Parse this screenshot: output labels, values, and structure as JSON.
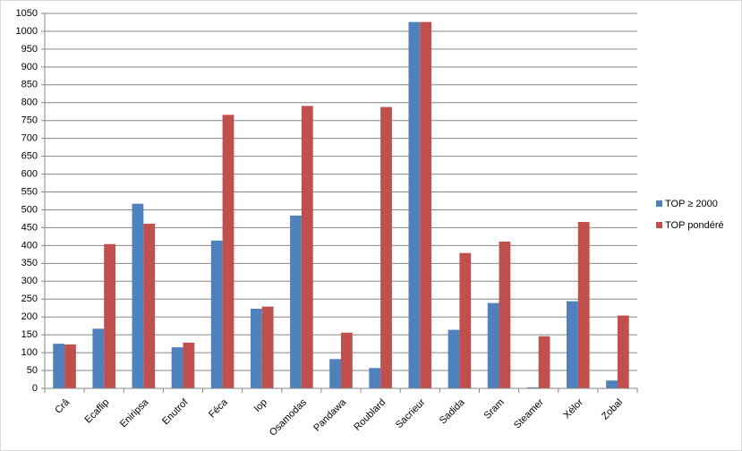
{
  "chart_data": {
    "type": "bar",
    "categories": [
      "Crâ",
      "Ecaflip",
      "Eniripsa",
      "Enutrof",
      "Féca",
      "Iop",
      "Osamodas",
      "Pandawa",
      "Roublard",
      "Sacrieur",
      "Sadida",
      "Sram",
      "Steamer",
      "Xélor",
      "Zobal"
    ],
    "series": [
      {
        "name": "TOP ≥ 2000",
        "color": "#4f81bd",
        "values": [
          125,
          167,
          517,
          115,
          414,
          223,
          484,
          82,
          57,
          1026,
          164,
          239,
          3,
          244,
          22
        ]
      },
      {
        "name": "TOP pondéré",
        "color": "#c0504d",
        "values": [
          123,
          404,
          461,
          128,
          766,
          229,
          791,
          156,
          788,
          1026,
          379,
          411,
          146,
          466,
          204
        ]
      }
    ],
    "ylim": [
      0,
      1050
    ],
    "yticks": [
      0,
      50,
      100,
      150,
      200,
      250,
      300,
      350,
      400,
      450,
      500,
      550,
      600,
      650,
      700,
      750,
      800,
      850,
      900,
      950,
      1000,
      1050
    ],
    "grid": true,
    "legend": "right"
  }
}
